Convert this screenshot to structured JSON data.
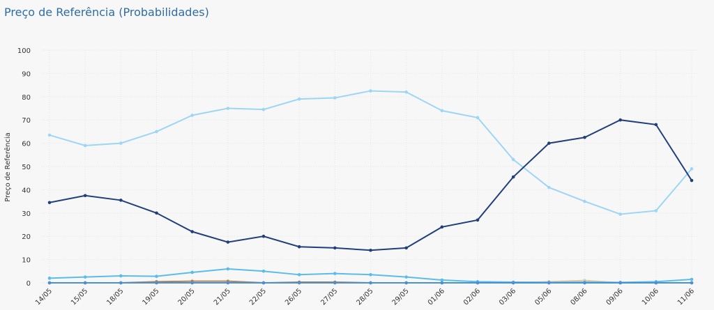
{
  "chart_data": {
    "type": "line",
    "title": "Preço de Referência (Probabilidades)",
    "y_label": "Preço de Referência",
    "categories": [
      "14/05",
      "15/05",
      "18/05",
      "19/05",
      "20/05",
      "21/05",
      "22/05",
      "26/05",
      "27/05",
      "28/05",
      "29/05",
      "01/06",
      "02/06",
      "03/06",
      "05/06",
      "08/06",
      "09/06",
      "10/06",
      "11/06"
    ],
    "series": [
      {
        "color": "#9dd6f5",
        "values": [
          63.5,
          59,
          60,
          65,
          72,
          75,
          74.5,
          79,
          79.5,
          82.5,
          82,
          74,
          71,
          53,
          41,
          35,
          29.5,
          31,
          49
        ]
      },
      {
        "color": "#213f7a",
        "values": [
          34.5,
          37.5,
          35.5,
          30,
          22,
          17.5,
          20,
          15.5,
          15,
          14,
          15,
          24,
          27,
          45.5,
          60,
          62.5,
          70,
          68,
          44
        ]
      },
      {
        "color": "#d9c9a3",
        "values": [
          0,
          0,
          0,
          0,
          0,
          0,
          0,
          0,
          0,
          0,
          0,
          0,
          0,
          0,
          0.5,
          1,
          0,
          0,
          0
        ]
      },
      {
        "color": "#b5834d",
        "values": [
          0,
          0,
          0,
          0.5,
          0.7,
          0.7,
          0,
          0.3,
          0.3,
          0,
          0,
          0,
          0,
          0,
          0,
          0,
          0,
          0,
          0
        ]
      },
      {
        "color": "#5bbcea",
        "values": [
          2,
          2.5,
          3,
          2.8,
          4.5,
          6,
          5,
          3.5,
          4,
          3.5,
          2.5,
          1.2,
          0.5,
          0.3,
          0.2,
          0.3,
          0.2,
          0.5,
          1.5
        ]
      },
      {
        "color": "#4a90d9",
        "values": [
          0,
          0,
          0,
          0,
          0,
          0,
          0,
          0,
          0,
          0,
          0,
          0,
          0,
          0,
          0,
          0,
          0,
          0,
          0
        ]
      }
    ],
    "ylim": [
      0,
      100
    ],
    "yticks": [
      0,
      10,
      20,
      30,
      40,
      50,
      60,
      70,
      80,
      90,
      100
    ],
    "grid": true
  }
}
